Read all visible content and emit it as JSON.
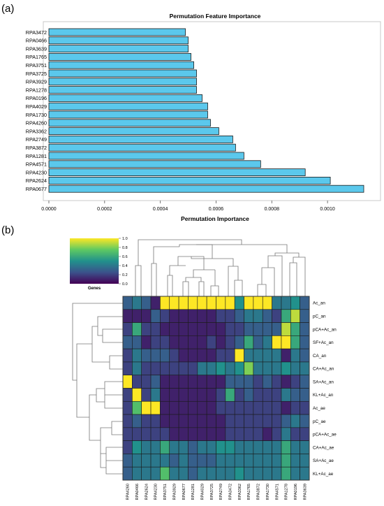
{
  "panel_labels": {
    "a": "(a)",
    "b": "(b)"
  },
  "chart_data": [
    {
      "type": "bar",
      "orientation": "horizontal",
      "title": "Permutation Feature Importance",
      "xlabel": "Permutation Importance",
      "ylabel": "",
      "xlim": [
        0,
        0.00115
      ],
      "xticks": [
        {
          "v": 0,
          "label": "0.0000"
        },
        {
          "v": 0.0002,
          "label": "0.0002"
        },
        {
          "v": 0.0004,
          "label": "0.0004"
        },
        {
          "v": 0.0006,
          "label": "0.0006"
        },
        {
          "v": 0.0008,
          "label": "0.0008"
        },
        {
          "v": 0.001,
          "label": "0.0010"
        }
      ],
      "bar_color": "#5bc8ec",
      "categories": [
        "RPA3472",
        "RPA0466",
        "RPA3639",
        "RPA1765",
        "RPA3751",
        "RPA3725",
        "RPA3929",
        "RPA1278",
        "RPA0196",
        "RPA4029",
        "RPA1730",
        "RPA4260",
        "RPA3362",
        "RPA2749",
        "RPA3872",
        "RPA1281",
        "RPA4571",
        "RPA4230",
        "RPA2624",
        "RPA0677"
      ],
      "values": [
        0.00049,
        0.0005,
        0.0005,
        0.00051,
        0.00052,
        0.00053,
        0.00053,
        0.00053,
        0.00055,
        0.00057,
        0.00057,
        0.00058,
        0.00061,
        0.00066,
        0.00067,
        0.0007,
        0.00076,
        0.00092,
        0.00101,
        0.00113
      ]
    },
    {
      "type": "heatmap",
      "colorscale": "viridis",
      "colorbar": {
        "label": "Genes",
        "range": [
          0,
          1
        ],
        "ticks": [
          "1.0",
          "0.8",
          "0.6",
          "0.4",
          "0.2",
          "0.0"
        ]
      },
      "columns": [
        "RPA4260",
        "RPA0466",
        "RPA2624",
        "RPA4230",
        "RPA3751",
        "RPA3929",
        "RPA0677",
        "RPA1281",
        "RPA4029",
        "RPA3725",
        "RPA2749",
        "RPA3472",
        "RPA3362",
        "RPA1765",
        "RPA3872",
        "RPA1730",
        "RPA4571",
        "RPA1278",
        "RPA0196",
        "RPA3639"
      ],
      "rows": [
        "Ac_an",
        "pC_an",
        "pCA+Ac_an",
        "SF+Ac_an",
        "CA_an",
        "CA+Ac_an",
        "SA+Ac_an",
        "KL+Ac_an",
        "Ac_ae",
        "pC_ae",
        "pCA+Ac_ae",
        "CA+Ac_ae",
        "SA+Ac_ae",
        "KL+Ac_ae"
      ],
      "values": [
        [
          0.3,
          0.4,
          0.3,
          0.1,
          1.0,
          1.0,
          1.0,
          1.0,
          1.0,
          1.0,
          1.0,
          1.0,
          0.5,
          1.0,
          1.0,
          1.0,
          0.4,
          0.4,
          0.5,
          0.3
        ],
        [
          0.1,
          0.1,
          0.1,
          0.3,
          0.2,
          0.1,
          0.1,
          0.1,
          0.1,
          0.1,
          0.2,
          0.2,
          0.3,
          0.4,
          0.4,
          0.3,
          0.2,
          0.6,
          0.9,
          0.3
        ],
        [
          0.2,
          0.6,
          0.2,
          0.2,
          0.1,
          0.1,
          0.1,
          0.1,
          0.1,
          0.1,
          0.1,
          0.2,
          0.2,
          0.3,
          0.3,
          0.3,
          0.3,
          0.9,
          0.6,
          0.3
        ],
        [
          0.3,
          0.3,
          0.1,
          0.2,
          0.2,
          0.1,
          0.1,
          0.1,
          0.1,
          0.2,
          0.1,
          0.2,
          0.3,
          0.6,
          0.3,
          0.4,
          1.0,
          1.0,
          0.6,
          0.3
        ],
        [
          0.2,
          0.4,
          0.3,
          0.3,
          0.3,
          0.2,
          0.1,
          0.1,
          0.1,
          0.1,
          0.2,
          0.2,
          1.0,
          0.4,
          0.4,
          0.4,
          0.4,
          0.1,
          0.4,
          0.3
        ],
        [
          0.2,
          0.4,
          0.2,
          0.2,
          0.2,
          0.2,
          0.2,
          0.2,
          0.4,
          0.4,
          0.5,
          0.4,
          0.5,
          0.8,
          0.4,
          0.4,
          0.4,
          0.5,
          0.4,
          0.4
        ],
        [
          1.0,
          0.2,
          0.2,
          0.3,
          0.1,
          0.1,
          0.1,
          0.1,
          0.1,
          0.1,
          0.1,
          0.3,
          0.3,
          0.3,
          0.2,
          0.3,
          0.2,
          0.1,
          0.2,
          0.3
        ],
        [
          0.2,
          1.0,
          0.2,
          0.4,
          0.1,
          0.1,
          0.1,
          0.1,
          0.1,
          0.1,
          0.2,
          0.6,
          0.2,
          0.3,
          0.2,
          0.2,
          0.2,
          0.4,
          0.3,
          0.3
        ],
        [
          0.2,
          0.7,
          1.0,
          1.0,
          0.1,
          0.1,
          0.1,
          0.1,
          0.1,
          0.1,
          0.2,
          0.2,
          0.2,
          0.2,
          0.2,
          0.2,
          0.2,
          0.1,
          0.2,
          0.2
        ],
        [
          0.2,
          0.3,
          0.2,
          0.2,
          0.1,
          0.1,
          0.1,
          0.1,
          0.1,
          0.1,
          0.1,
          0.2,
          0.2,
          0.2,
          0.2,
          0.2,
          0.2,
          0.3,
          0.4,
          0.3
        ],
        [
          0.2,
          0.2,
          0.2,
          0.2,
          0.2,
          0.1,
          0.1,
          0.1,
          0.1,
          0.1,
          0.1,
          0.2,
          0.2,
          0.2,
          0.2,
          0.1,
          0.2,
          0.4,
          0.2,
          0.2
        ],
        [
          0.2,
          0.5,
          0.4,
          0.4,
          0.6,
          0.4,
          0.4,
          0.3,
          0.4,
          0.4,
          0.5,
          0.5,
          0.4,
          0.4,
          0.4,
          0.4,
          0.4,
          0.6,
          0.4,
          0.4
        ],
        [
          0.3,
          0.4,
          0.4,
          0.4,
          0.4,
          0.3,
          0.4,
          0.3,
          0.3,
          0.3,
          0.4,
          0.4,
          0.4,
          0.4,
          0.4,
          0.4,
          0.4,
          0.6,
          0.4,
          0.4
        ],
        [
          0.3,
          0.4,
          0.4,
          0.4,
          0.7,
          0.4,
          0.4,
          0.3,
          0.4,
          0.4,
          0.4,
          0.4,
          0.5,
          0.4,
          0.4,
          0.4,
          0.4,
          0.6,
          0.4,
          0.4
        ]
      ]
    }
  ]
}
